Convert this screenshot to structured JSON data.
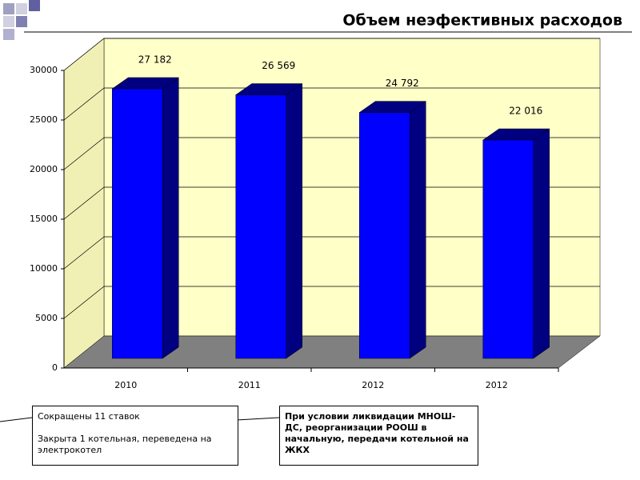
{
  "chart_data": {
    "type": "bar3d",
    "title": "Объем неэфективных расходов",
    "categories": [
      "2010",
      "2011",
      "2012",
      "2012"
    ],
    "values": [
      27182,
      26569,
      24792,
      22016
    ],
    "value_labels": [
      "27 182",
      "26 569",
      "24 792",
      "22 016"
    ],
    "color": "#0000ff",
    "side_color": "#000080",
    "ylim": [
      0,
      30000
    ],
    "yticks": [
      0,
      5000,
      10000,
      15000,
      20000,
      25000,
      30000
    ],
    "grid": true,
    "annotations": [
      [
        "Сокращены 11 ставок",
        "Закрыта 1 котельная, переведена на электрокотел"
      ],
      [
        "При условии ликвидации МНОШ-ДС, реорганизации РООШ в начальную, передачи котельной на ЖКХ"
      ]
    ]
  }
}
